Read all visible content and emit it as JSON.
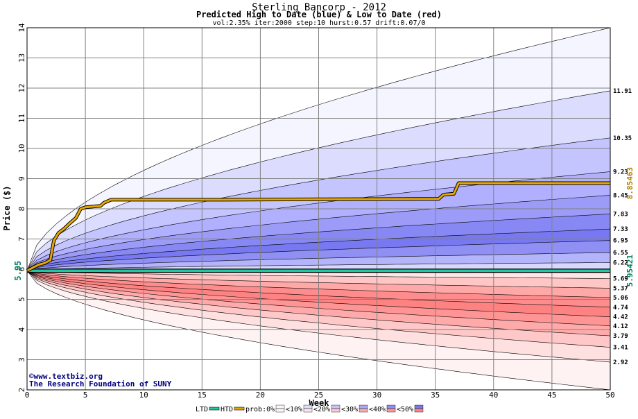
{
  "chart_data": {
    "type": "area",
    "title": "Sterling Bancorp - 2012",
    "subtitle": "Predicted High to Date (blue) &  Low to Date (red)",
    "params": "vol:2.35% iter:2000 step:10 hurst:0.57 drift:0.07/0",
    "xlabel": "Week",
    "ylabel": "Price ($)",
    "xlim": [
      0,
      50
    ],
    "ylim": [
      2,
      14
    ],
    "x_ticks": [
      0,
      5,
      10,
      15,
      20,
      25,
      30,
      35,
      40,
      45,
      50
    ],
    "y_ticks": [
      2,
      3,
      4,
      5,
      6,
      7,
      8,
      9,
      10,
      11,
      12,
      13,
      14
    ],
    "grid": true,
    "start_price": 5.95,
    "start_price_label": "5.95",
    "high_bands": [
      {
        "name": "prob:0%",
        "end": 14,
        "color": "#f5f5ff"
      },
      {
        "name": "<10%",
        "end": 11.91,
        "color": "#dcdcff"
      },
      {
        "name": "<20%",
        "end": 10.35,
        "color": "#c4c4ff"
      },
      {
        "name": "<20%",
        "end": 9.23,
        "color": "#b0b0ff"
      },
      {
        "name": "<30%",
        "end": 8.45,
        "color": "#9c9cf8"
      },
      {
        "name": "<40%",
        "end": 7.83,
        "color": "#8888f4"
      },
      {
        "name": "<50%",
        "end": 7.33,
        "color": "#7878f0"
      },
      {
        "name": "<40%",
        "end": 6.95,
        "color": "#9090f4"
      },
      {
        "name": "<30%",
        "end": 6.55,
        "color": "#b4b4fa"
      },
      {
        "name": "<20%",
        "end": 6.22,
        "color": "#d8d8ff"
      }
    ],
    "low_bands": [
      {
        "name": "prob:0%",
        "end": 2.0,
        "color": "#fff2f2"
      },
      {
        "name": "<10%",
        "end": 2.92,
        "color": "#ffe0e0"
      },
      {
        "name": "<20%",
        "end": 3.41,
        "color": "#ffc8c8"
      },
      {
        "name": "<30%",
        "end": 3.79,
        "color": "#ffaaaa"
      },
      {
        "name": "<40%",
        "end": 4.12,
        "color": "#ff9494"
      },
      {
        "name": "<50%",
        "end": 4.42,
        "color": "#ff8282"
      },
      {
        "name": "<50%",
        "end": 4.74,
        "color": "#ff8c8c"
      },
      {
        "name": "<40%",
        "end": 5.06,
        "color": "#ffa8a8"
      },
      {
        "name": "<30%",
        "end": 5.37,
        "color": "#ffc6c6"
      },
      {
        "name": "<10%",
        "end": 5.69,
        "color": "#ffe6e6"
      }
    ],
    "right_labels": [
      "11.91",
      "10.35",
      "9.23",
      "8.45",
      "7.83",
      "7.33",
      "6.95",
      "6.55",
      "6.22",
      "5.69",
      "5.37",
      "5.06",
      "4.74",
      "4.42",
      "4.12",
      "3.79",
      "3.41",
      "2.92"
    ],
    "right_label_values": [
      11.91,
      10.35,
      9.23,
      8.45,
      7.83,
      7.33,
      6.95,
      6.55,
      6.22,
      5.69,
      5.37,
      5.06,
      4.74,
      4.42,
      4.12,
      3.79,
      3.41,
      2.92
    ],
    "htd_series": {
      "name": "HTD",
      "color": "#e6a800",
      "x": [
        0,
        1,
        1.5,
        2,
        2.3,
        2.7,
        3.2,
        3.6,
        4.2,
        4.6,
        5,
        6.3,
        6.6,
        7.2,
        17,
        35.3,
        35.7,
        36.6,
        37,
        50
      ],
      "y": [
        5.95,
        6.15,
        6.2,
        6.3,
        6.95,
        7.2,
        7.35,
        7.5,
        7.7,
        8.0,
        8.05,
        8.1,
        8.2,
        8.3,
        8.3,
        8.33,
        8.47,
        8.5,
        8.85,
        8.85
      ],
      "end_label": "8.85463"
    },
    "ltd_series": {
      "name": "LTD",
      "color": "#1ec8a0",
      "x": [
        0,
        50
      ],
      "y": [
        5.95,
        5.95
      ],
      "end_label": "5.95421"
    },
    "legend": [
      "LTD",
      "HTD",
      "prob:0%",
      "<10%",
      "<20%",
      "<30%",
      "<40%",
      "<50%"
    ],
    "legend_colors": {
      "LTD": "#1ec8a0",
      "HTD": "#e6a800",
      "prob:0%": [
        "#f5f5ff",
        "#fff2f2"
      ],
      "<10%": [
        "#dcdcff",
        "#ffe6e6"
      ],
      "<20%": [
        "#c4c4ff",
        "#ffc8c8"
      ],
      "<30%": [
        "#a8a8ff",
        "#ffaaaa"
      ],
      "<40%": [
        "#9090f4",
        "#ff9494"
      ],
      "<50%": [
        "#7878f0",
        "#ff8282"
      ]
    },
    "legend_placement": "bottom"
  },
  "footer": {
    "copyright": "©www.textbiz.org",
    "org": "The Research Foundation of SUNY"
  }
}
